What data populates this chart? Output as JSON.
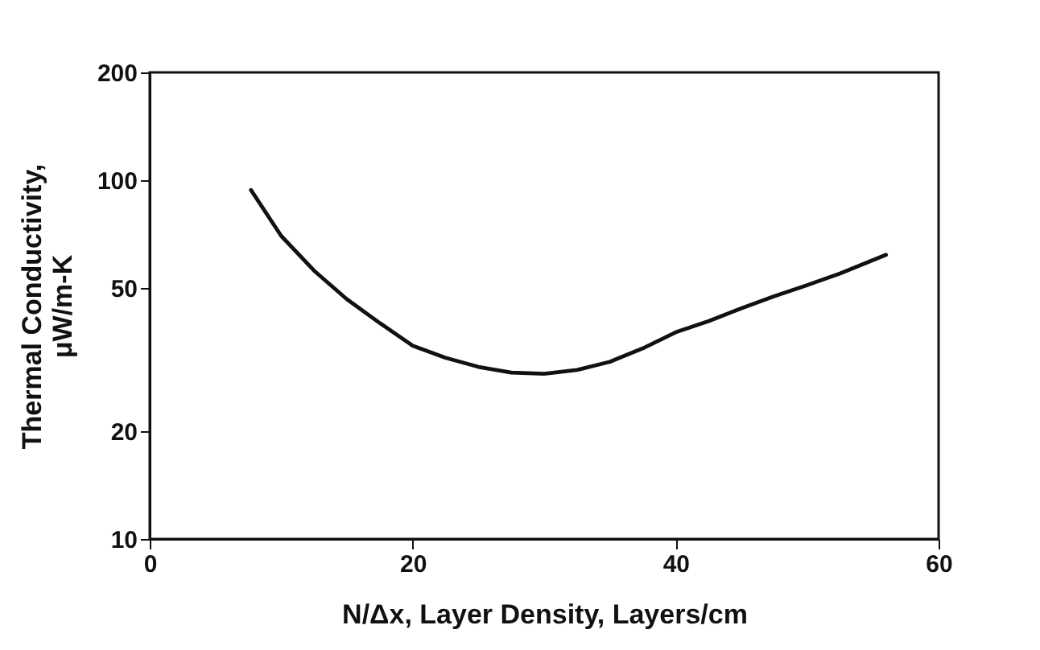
{
  "chart_data": {
    "type": "line",
    "xlabel": "N/Δx, Layer Density, Layers/cm",
    "ylabel": [
      "Thermal Conductivity,",
      "μW/m-K"
    ],
    "x": [
      7.7,
      10,
      12.5,
      15,
      17.5,
      20,
      22.5,
      25,
      27.5,
      30,
      32.5,
      35,
      37.5,
      40,
      42.5,
      45,
      47.5,
      50,
      52.5,
      56
    ],
    "series": [
      {
        "color": "#111111",
        "values": [
          94,
          70,
          56,
          46.6,
          40,
          34.6,
          32,
          30.2,
          29.1,
          28.9,
          29.6,
          31.2,
          34,
          37.7,
          40.5,
          44,
          47.5,
          51,
          55,
          62
        ]
      }
    ],
    "xlim": [
      0,
      60
    ],
    "xticks": [
      0,
      20,
      40,
      60
    ],
    "ylim": [
      10,
      200
    ],
    "yticks": [
      10,
      20,
      50,
      100,
      200
    ],
    "log": true,
    "grid": false,
    "marker": "none",
    "line_style": "solid"
  }
}
